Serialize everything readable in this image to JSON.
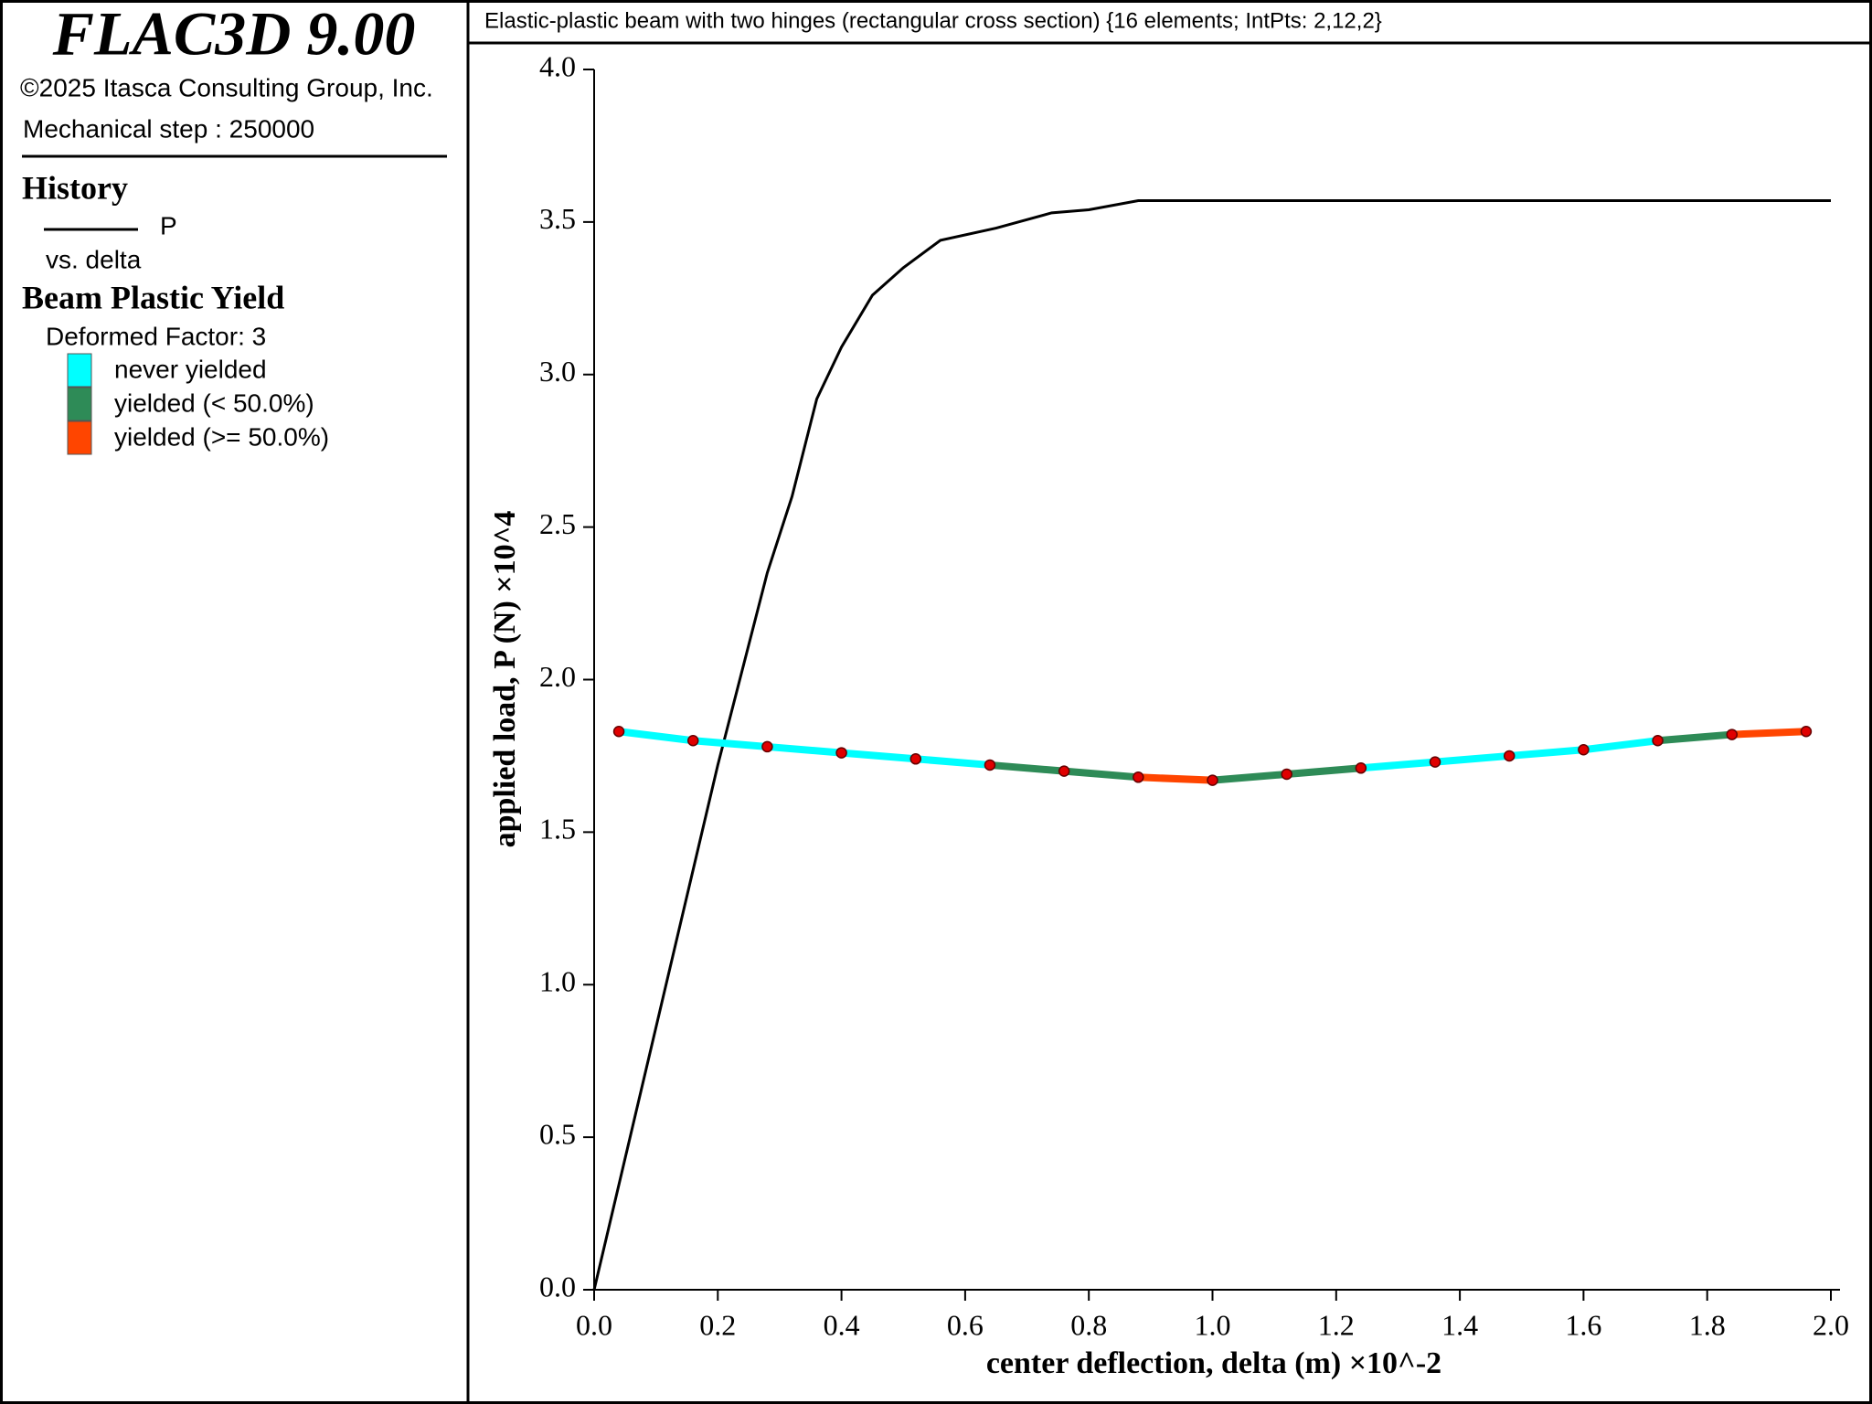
{
  "header": {
    "title": "FLAC3D 9.00",
    "copyright": "©2025 Itasca Consulting Group, Inc.",
    "step": "Mechanical step : 250000"
  },
  "legend": {
    "history_title": "History",
    "history_series": "P",
    "history_vs": "vs. delta",
    "beam_title": "Beam Plastic Yield",
    "beam_factor": "Deformed Factor: 3",
    "beam_items": [
      {
        "name": "never yielded",
        "color": "#00ffff"
      },
      {
        "name": "yielded (< 50.0%)",
        "color": "#2e8b57"
      },
      {
        "name": "yielded (>= 50.0%)",
        "color": "#ff4500"
      }
    ]
  },
  "chart_data": [
    {
      "type": "line",
      "title": "Elastic-plastic beam with two hinges (rectangular cross section) {16 elements; IntPts: 2,12,2}",
      "x_label": "center deflection, delta (m) ×10^-2",
      "y_label": "applied load, P (N) ×10^4",
      "xlim": [
        0,
        2.0
      ],
      "ylim": [
        0,
        4.0
      ],
      "xticks": [
        {
          "value": 0,
          "label": "0.0"
        },
        {
          "value": 0.2,
          "label": "0.2"
        },
        {
          "value": 0.4,
          "label": "0.4"
        },
        {
          "value": 0.6,
          "label": "0.6"
        },
        {
          "value": 0.8,
          "label": "0.8"
        },
        {
          "value": 1.0,
          "label": "1.0"
        },
        {
          "value": 1.2,
          "label": "1.2"
        },
        {
          "value": 1.4,
          "label": "1.4"
        },
        {
          "value": 1.6,
          "label": "1.6"
        },
        {
          "value": 1.8,
          "label": "1.8"
        },
        {
          "value": 2.0,
          "label": "2.0"
        }
      ],
      "yticks": [
        {
          "value": 0,
          "label": "0.0"
        },
        {
          "value": 0.5,
          "label": "0.5"
        },
        {
          "value": 1.0,
          "label": "1.0"
        },
        {
          "value": 1.5,
          "label": "1.5"
        },
        {
          "value": 2.0,
          "label": "2.0"
        },
        {
          "value": 2.5,
          "label": "2.5"
        },
        {
          "value": 3.0,
          "label": "3.0"
        },
        {
          "value": 3.5,
          "label": "3.5"
        },
        {
          "value": 4.0,
          "label": "4.0"
        }
      ],
      "x": [
        0,
        0.2,
        0.28,
        0.32,
        0.36,
        0.4,
        0.45,
        0.5,
        0.56,
        0.65,
        0.74,
        0.8,
        0.88,
        2.0
      ],
      "series": [
        {
          "name": "P",
          "color": "#000000",
          "values": [
            0,
            1.72,
            2.35,
            2.6,
            2.92,
            3.09,
            3.26,
            3.35,
            3.44,
            3.48,
            3.53,
            3.54,
            3.57,
            3.57
          ]
        }
      ]
    },
    {
      "type": "beam",
      "x": [
        0.04,
        0.16,
        0.28,
        0.4,
        0.52,
        0.64,
        0.76,
        0.88,
        1.0,
        1.12,
        1.24,
        1.36,
        1.48,
        1.6,
        1.72,
        1.84,
        1.96
      ],
      "values": [
        1.83,
        1.8,
        1.78,
        1.76,
        1.74,
        1.72,
        1.7,
        1.68,
        1.67,
        1.69,
        1.71,
        1.73,
        1.75,
        1.77,
        1.8,
        1.82,
        1.83
      ],
      "segment_colors": [
        "#00ffff",
        "#00ffff",
        "#00ffff",
        "#00ffff",
        "#00ffff",
        "#2e8b57",
        "#2e8b57",
        "#ff4500",
        "#2e8b57",
        "#2e8b57",
        "#00ffff",
        "#00ffff",
        "#00ffff",
        "#00ffff",
        "#2e8b57",
        "#ff4500"
      ],
      "node_color": "#e00000"
    }
  ]
}
